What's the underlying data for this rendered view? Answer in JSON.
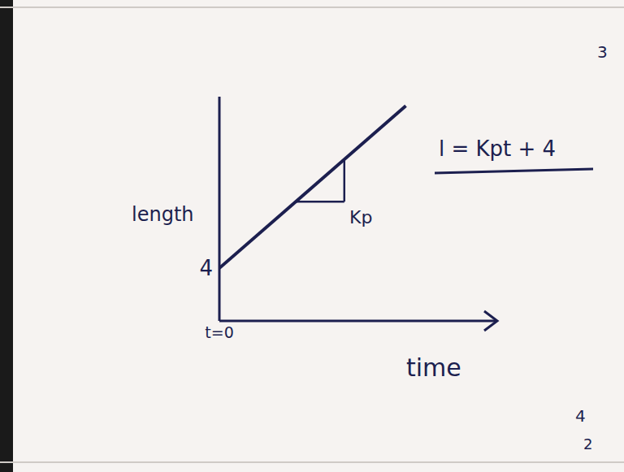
{
  "chart_data": {
    "type": "line",
    "x_label": "time",
    "y_label": "length",
    "x": [
      0,
      13.5
    ],
    "values": [
      4,
      16.3
    ],
    "color": "#1c1f4f",
    "xlim": [
      0,
      20
    ],
    "xticks": [
      {
        "value": 0,
        "label": "t=0"
      }
    ],
    "ylim": [
      0,
      17
    ],
    "yticks": [
      4
    ],
    "grid": false,
    "annotations": [
      "Kp",
      "l = Kpt + 4",
      "3",
      "4",
      "2"
    ]
  }
}
